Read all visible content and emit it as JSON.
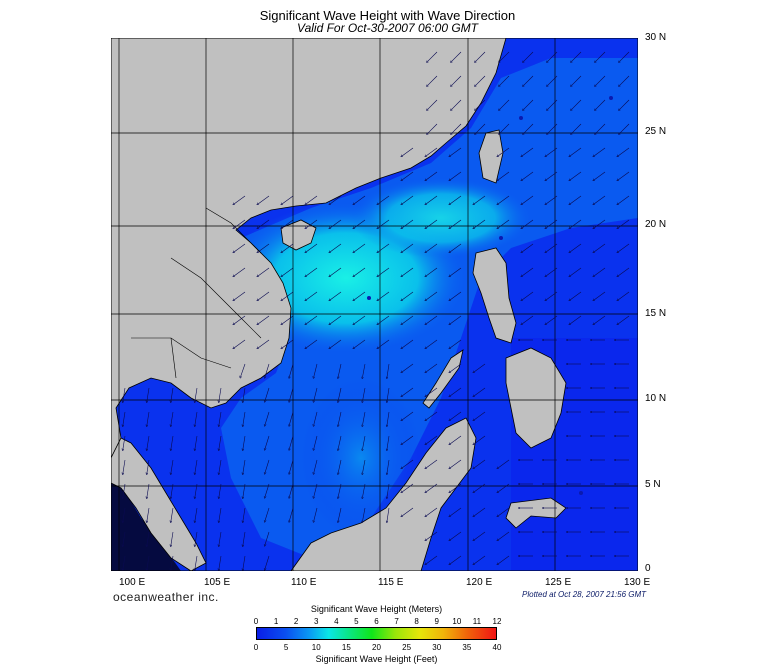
{
  "title": "Significant Wave Height with Wave Direction",
  "subtitle": "Valid For Oct-30-2007 06:00 GMT",
  "lat_labels": [
    "30 N",
    "25 N",
    "20 N",
    "15 N",
    "10 N",
    "5 N",
    "0"
  ],
  "lon_labels": [
    "100 E",
    "105 E",
    "110 E",
    "115 E",
    "120 E",
    "125 E",
    "130 E"
  ],
  "brand": "oceanweather inc.",
  "plotted": "Plotted at Oct 28, 2007 21:56 GMT",
  "legend": {
    "meters_title": "Significant Wave Height (Meters)",
    "feet_title": "Significant Wave Height (Feet)",
    "meters_ticks": [
      "0",
      "1",
      "2",
      "3",
      "4",
      "5",
      "6",
      "7",
      "8",
      "9",
      "10",
      "11",
      "12"
    ],
    "feet_ticks": [
      "0",
      "5",
      "10",
      "15",
      "20",
      "25",
      "30",
      "35",
      "40"
    ]
  },
  "colors": {
    "land": "#c0c0c0",
    "deep_blue": "#0a1ee6",
    "mid_blue": "#0a64f0",
    "cyan": "#0ae6e6",
    "grid": "#000000"
  }
}
